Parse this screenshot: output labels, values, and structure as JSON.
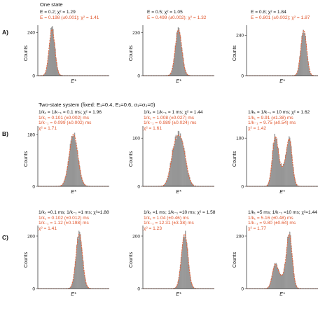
{
  "colors": {
    "histogram": "#a8a8a8",
    "histogram_edge": "#6f6f6f",
    "fit": "#e8643a",
    "annotation_fit": "#e0542a",
    "axis": "#222222"
  },
  "sections": [
    {
      "label": "A)",
      "header": "One state"
    },
    {
      "label": "B)",
      "header": "Two-state system (fixed: E₁=0.4, E₂=0.6, σ₁=σ₂=0)"
    },
    {
      "label": "C)",
      "header": ""
    }
  ],
  "panels": [
    {
      "annotation": [
        {
          "text": "E = 0.2; χ² = 1.29",
          "color": "black"
        },
        {
          "text": "E = 0.198 (±0.001); χ² = 1.41",
          "color": "red"
        }
      ]
    },
    {
      "annotation": [
        {
          "text": "E = 0.5; χ² = 1.05",
          "color": "black"
        },
        {
          "text": "E = 0.499 (±0.002); χ² = 1.32",
          "color": "red"
        }
      ]
    },
    {
      "annotation": [
        {
          "text": "E = 0.8; χ² = 1.84",
          "color": "black"
        },
        {
          "text": "E = 0.801 (±0.002); χ² = 1.87",
          "color": "red"
        }
      ]
    },
    {
      "annotation": [
        {
          "text": "1/k₁ = 1/k₋₁ = 0.1 ms; χ² = 1.96",
          "color": "black"
        },
        {
          "text": "1/k₁ = 0.101 (±0.002) ms",
          "color": "red"
        },
        {
          "text": "1/k₋₁ = 0.099 (±0.002) ms",
          "color": "red"
        },
        {
          "text": "χ² = 1.71",
          "color": "red"
        }
      ]
    },
    {
      "annotation": [
        {
          "text": "1/k₁ = 1/k₋₁ = 1 ms; χ² = 1.44",
          "color": "black"
        },
        {
          "text": "1/k₁ = 1.008 (±0.027) ms",
          "color": "red"
        },
        {
          "text": "1/k₋₁ = 0.989 (±0.024) ms",
          "color": "red"
        },
        {
          "text": "χ² = 1.61",
          "color": "red"
        }
      ]
    },
    {
      "annotation": [
        {
          "text": "1/k₁ = 1/k₋₁ = 10 ms; χ² = 1.62",
          "color": "black"
        },
        {
          "text": "1/k₁ = 9.91 (±1.38) ms",
          "color": "red"
        },
        {
          "text": "1/k₋₁ = 9.75 (±0.54) ms",
          "color": "red"
        },
        {
          "text": "χ² = 1.42",
          "color": "red"
        }
      ]
    },
    {
      "annotation": [
        {
          "text": "1/k₁ =0.1 ms; 1/k₋₁ =1 ms; χ²=1.88",
          "color": "black"
        },
        {
          "text": "1/k₁ = 0.102 (±0.012) ms",
          "color": "red"
        },
        {
          "text": "1/k₋₁ = 1.12 (±0.198) ms",
          "color": "red"
        },
        {
          "text": "χ² = 1.41",
          "color": "red"
        }
      ]
    },
    {
      "annotation": [
        {
          "text": "1/k₁ =1 ms; 1/k₋₁ =10 ms; χ² = 1.58",
          "color": "black"
        },
        {
          "text": "1/k₁ = 1.04 (±0.46) ms",
          "color": "red"
        },
        {
          "text": "1/k₋₁ = 12.31 (±3.38) ms",
          "color": "red"
        },
        {
          "text": "χ² = 1.23",
          "color": "red"
        }
      ]
    },
    {
      "annotation": [
        {
          "text": "1/k₁ =5 ms; 1/k₋₁ =10 ms; χ²=1.44",
          "color": "black"
        },
        {
          "text": "1/k₁ = 5.16 (±0.48) ms",
          "color": "red"
        },
        {
          "text": "1/k₋₁ = 9.80 (±0.64) ms",
          "color": "red"
        },
        {
          "text": "χ² = 1.77",
          "color": "red"
        }
      ]
    }
  ],
  "chart_data": [
    {
      "type": "bar",
      "section": "A)",
      "ylabel": "Counts",
      "xlabel": "E*",
      "xlim": [
        0,
        1
      ],
      "ylim": [
        0,
        280
      ],
      "yticks": [
        0,
        240
      ],
      "yticklabels": [
        "0",
        "240"
      ],
      "components": [
        {
          "center": 0.2,
          "width": 0.04,
          "weight": 1.0
        }
      ],
      "peak_count": 262,
      "fit": [
        {
          "center": 0.198,
          "width": 0.04,
          "weight": 1.0
        }
      ]
    },
    {
      "type": "bar",
      "section": "A)",
      "ylabel": "Counts",
      "xlabel": "E*",
      "xlim": [
        0,
        1
      ],
      "ylim": [
        0,
        270
      ],
      "yticks": [
        0,
        230
      ],
      "yticklabels": [
        "0",
        "230"
      ],
      "components": [
        {
          "center": 0.5,
          "width": 0.045,
          "weight": 1.0
        }
      ],
      "peak_count": 250,
      "fit": [
        {
          "center": 0.499,
          "width": 0.045,
          "weight": 1.0
        }
      ]
    },
    {
      "type": "bar",
      "section": "A)",
      "ylabel": "Counts",
      "xlabel": "E*",
      "xlim": [
        0,
        1
      ],
      "ylim": [
        0,
        300
      ],
      "yticks": [
        0,
        240
      ],
      "yticklabels": [
        "0",
        "240"
      ],
      "components": [
        {
          "center": 0.8,
          "width": 0.04,
          "weight": 1.0
        }
      ],
      "peak_count": 275,
      "fit": [
        {
          "center": 0.801,
          "width": 0.04,
          "weight": 1.0
        }
      ]
    },
    {
      "type": "bar",
      "section": "B)",
      "ylabel": "Counts",
      "xlabel": "E*",
      "xlim": [
        0,
        1
      ],
      "ylim": [
        0,
        210
      ],
      "yticks": [
        0,
        180
      ],
      "yticklabels": [
        "0",
        "180"
      ],
      "components": [
        {
          "center": 0.5,
          "width": 0.06,
          "weight": 1.0
        }
      ],
      "peak_count": 185,
      "fit": [
        {
          "center": 0.5,
          "width": 0.06,
          "weight": 1.0
        }
      ]
    },
    {
      "type": "bar",
      "section": "B)",
      "ylabel": "Counts",
      "xlabel": "E*",
      "xlim": [
        0,
        1
      ],
      "ylim": [
        0,
        125
      ],
      "yticks": [
        0,
        100
      ],
      "yticklabels": [
        "0",
        "100"
      ],
      "components": [
        {
          "center": 0.45,
          "width": 0.06,
          "weight": 0.9
        },
        {
          "center": 0.55,
          "width": 0.06,
          "weight": 0.9
        }
      ],
      "peak_count": 108,
      "fit": [
        {
          "center": 0.45,
          "width": 0.06,
          "weight": 0.9
        },
        {
          "center": 0.55,
          "width": 0.06,
          "weight": 0.9
        }
      ]
    },
    {
      "type": "bar",
      "section": "B)",
      "ylabel": "Counts",
      "xlabel": "E*",
      "xlim": [
        0,
        1
      ],
      "ylim": [
        0,
        125
      ],
      "yticks": [
        0,
        100
      ],
      "yticklabels": [
        "0",
        "100"
      ],
      "components": [
        {
          "center": 0.4,
          "width": 0.04,
          "weight": 1.0
        },
        {
          "center": 0.6,
          "width": 0.04,
          "weight": 0.95
        },
        {
          "center": 0.5,
          "width": 0.06,
          "weight": 0.35
        }
      ],
      "peak_count": 105,
      "fit": [
        {
          "center": 0.4,
          "width": 0.04,
          "weight": 1.0
        },
        {
          "center": 0.6,
          "width": 0.04,
          "weight": 0.95
        },
        {
          "center": 0.5,
          "width": 0.06,
          "weight": 0.35
        }
      ]
    },
    {
      "type": "bar",
      "section": "C)",
      "ylabel": "Counts",
      "xlabel": "E*",
      "xlim": [
        0,
        1
      ],
      "ylim": [
        0,
        240
      ],
      "yticks": [
        0,
        200
      ],
      "yticklabels": [
        "0",
        "200"
      ],
      "components": [
        {
          "center": 0.58,
          "width": 0.045,
          "weight": 1.0
        }
      ],
      "peak_count": 212,
      "fit": [
        {
          "center": 0.58,
          "width": 0.045,
          "weight": 1.0
        }
      ]
    },
    {
      "type": "bar",
      "section": "C)",
      "ylabel": "Counts",
      "xlabel": "E*",
      "xlim": [
        0,
        1
      ],
      "ylim": [
        0,
        240
      ],
      "yticks": [
        0,
        200
      ],
      "yticklabels": [
        "0",
        "200"
      ],
      "components": [
        {
          "center": 0.585,
          "width": 0.045,
          "weight": 1.0
        }
      ],
      "peak_count": 212,
      "fit": [
        {
          "center": 0.585,
          "width": 0.045,
          "weight": 1.0
        }
      ]
    },
    {
      "type": "bar",
      "section": "C)",
      "ylabel": "Counts",
      "xlabel": "E*",
      "xlim": [
        0,
        1
      ],
      "ylim": [
        0,
        240
      ],
      "yticks": [
        0,
        200
      ],
      "yticklabels": [
        "0",
        "200"
      ],
      "components": [
        {
          "center": 0.4,
          "width": 0.04,
          "weight": 0.42
        },
        {
          "center": 0.6,
          "width": 0.04,
          "weight": 1.0
        },
        {
          "center": 0.5,
          "width": 0.06,
          "weight": 0.2
        }
      ],
      "peak_count": 210,
      "fit": [
        {
          "center": 0.4,
          "width": 0.04,
          "weight": 0.42
        },
        {
          "center": 0.6,
          "width": 0.04,
          "weight": 1.0
        },
        {
          "center": 0.5,
          "width": 0.06,
          "weight": 0.2
        }
      ]
    }
  ]
}
